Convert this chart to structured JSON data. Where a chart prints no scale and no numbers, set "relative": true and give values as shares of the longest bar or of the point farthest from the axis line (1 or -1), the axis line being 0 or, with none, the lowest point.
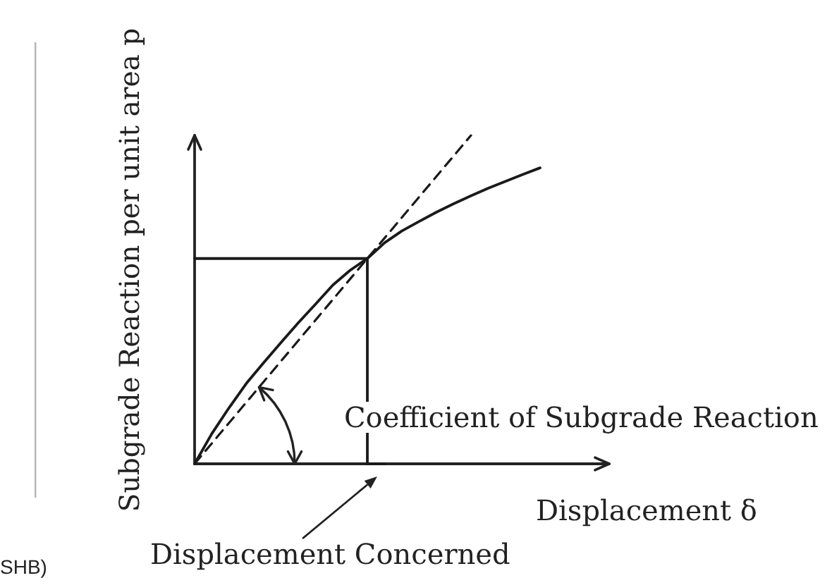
{
  "chart_data": {
    "type": "line",
    "relative": true,
    "xlabel": "Displacement δ",
    "ylabel": "Subgrade Reaction per unit area p",
    "marker": "none",
    "grid": false,
    "categories": [
      null,
      null,
      null,
      null,
      null,
      null,
      null,
      null,
      null,
      null,
      null,
      null,
      null,
      null,
      null,
      null,
      null,
      null,
      null,
      null,
      null,
      null,
      null,
      null,
      null
    ],
    "series": [
      {
        "color": "#1a1a1a",
        "line_style": "solid",
        "values": [
          0,
          0.092,
          0.171,
          0.245,
          0.308,
          0.369,
          0.429,
          0.486,
          0.544,
          0.589,
          0.625,
          0.673,
          0.709,
          0.738,
          0.766,
          0.792,
          0.816,
          0.839,
          0.86,
          0.881,
          0.901,
          null,
          null,
          null,
          null
        ]
      },
      {
        "color": "#1a1a1a",
        "line_style": "dashed",
        "values": [
          0,
          0.0625,
          0.125,
          0.1875,
          0.25,
          0.3125,
          0.375,
          0.4375,
          0.5,
          0.5625,
          0.625,
          0.6875,
          0.75,
          0.8125,
          0.875,
          0.9375,
          1,
          null,
          null,
          null,
          null,
          null,
          null,
          null,
          null
        ]
      },
      {
        "type": "step",
        "color": "#1a1a1a",
        "line_style": "solid",
        "values": [
          0.625,
          0.625,
          0.625,
          0.625,
          0.625,
          0.625,
          0.625,
          0.625,
          0.625,
          0.625,
          0.625,
          0,
          null,
          null,
          null,
          null,
          null,
          null,
          null,
          null,
          null,
          null,
          null,
          null,
          null
        ]
      }
    ],
    "annotations": [
      "Coefficient of Subgrade Reaction",
      "Displacement Concerned",
      "SHB)"
    ]
  }
}
